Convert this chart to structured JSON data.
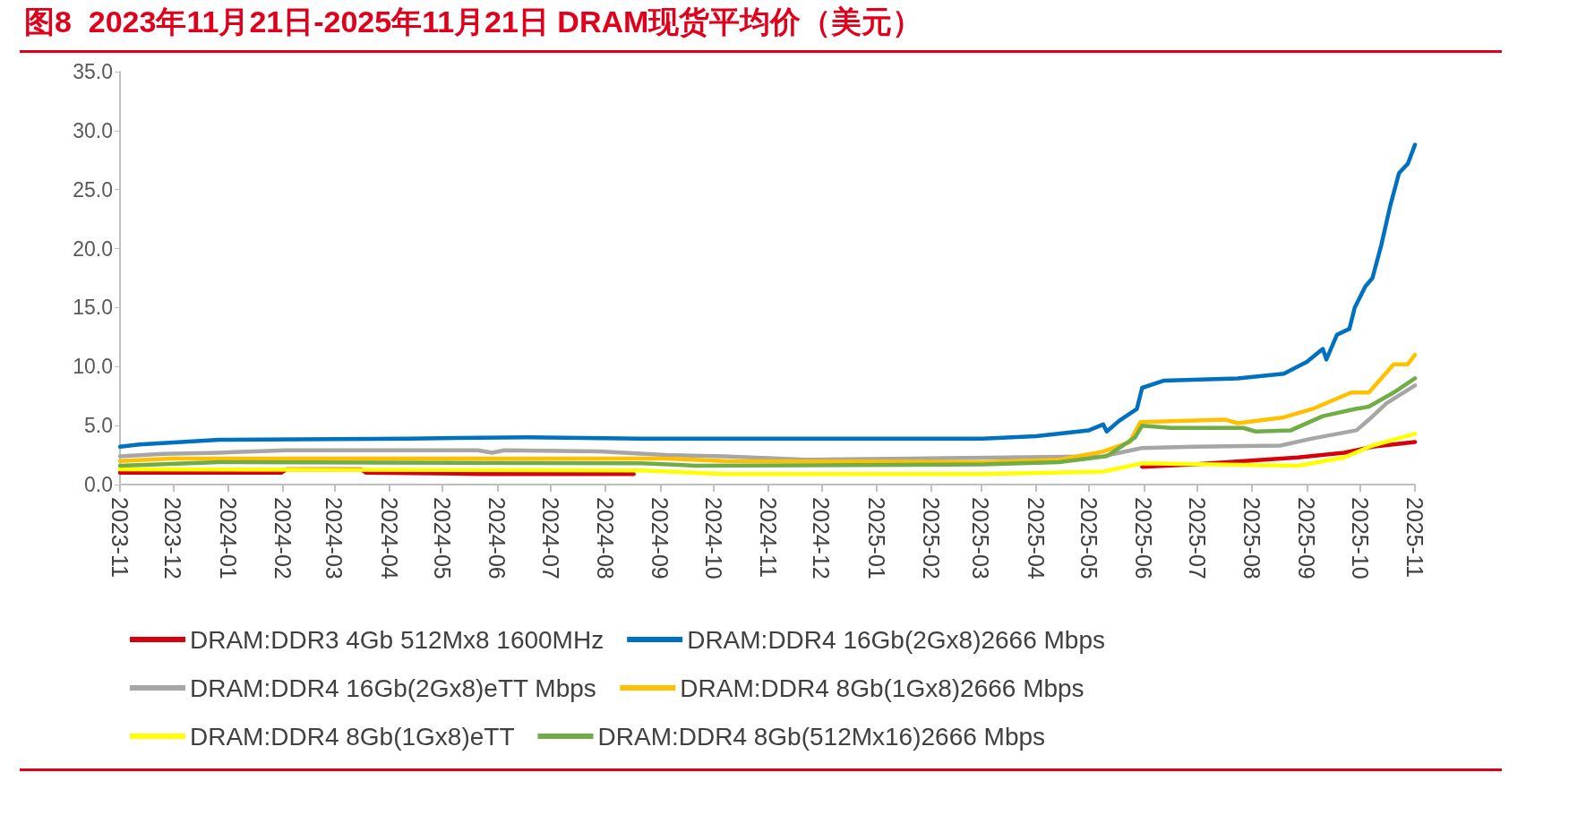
{
  "chart_data": {
    "type": "line",
    "title": "图8  2023年11月21日-2025年11月21日 DRAM现货平均价（美元）",
    "xlim": [
      "2023-11-21",
      "2025-11-21"
    ],
    "xticks": [
      {
        "value": "2023-11-21",
        "label": "2023-11"
      },
      {
        "value": "2023-12-21",
        "label": "2023-12"
      },
      {
        "value": "2024-01-21",
        "label": "2024-01"
      },
      {
        "value": "2024-02-21",
        "label": "2024-02"
      },
      {
        "value": "2024-03-21",
        "label": "2024-03"
      },
      {
        "value": "2024-04-21",
        "label": "2024-04"
      },
      {
        "value": "2024-05-21",
        "label": "2024-05"
      },
      {
        "value": "2024-06-21",
        "label": "2024-06"
      },
      {
        "value": "2024-07-21",
        "label": "2024-07"
      },
      {
        "value": "2024-08-21",
        "label": "2024-08"
      },
      {
        "value": "2024-09-21",
        "label": "2024-09"
      },
      {
        "value": "2024-10-21",
        "label": "2024-10"
      },
      {
        "value": "2024-11-21",
        "label": "2024-11"
      },
      {
        "value": "2024-12-21",
        "label": "2024-12"
      },
      {
        "value": "2025-01-21",
        "label": "2025-01"
      },
      {
        "value": "2025-02-21",
        "label": "2025-02"
      },
      {
        "value": "2025-03-21",
        "label": "2025-03"
      },
      {
        "value": "2025-04-21",
        "label": "2025-04"
      },
      {
        "value": "2025-05-21",
        "label": "2025-05"
      },
      {
        "value": "2025-06-21",
        "label": "2025-06"
      },
      {
        "value": "2025-07-21",
        "label": "2025-07"
      },
      {
        "value": "2025-08-21",
        "label": "2025-08"
      },
      {
        "value": "2025-09-21",
        "label": "2025-09"
      },
      {
        "value": "2025-10-21",
        "label": "2025-10"
      },
      {
        "value": "2025-11-21",
        "label": "2025-11"
      }
    ],
    "ylim": [
      0,
      35
    ],
    "yticks": [
      {
        "value": 0,
        "label": "0.0"
      },
      {
        "value": 5,
        "label": "5.0"
      },
      {
        "value": 10,
        "label": "10.0"
      },
      {
        "value": 15,
        "label": "15.0"
      },
      {
        "value": 20,
        "label": "20.0"
      },
      {
        "value": 25,
        "label": "25.0"
      },
      {
        "value": 30,
        "label": "30.0"
      },
      {
        "value": 35,
        "label": "35.0"
      }
    ],
    "legend": "bottom",
    "marker": "none",
    "line_style": "solid",
    "series": [
      {
        "name": "DRAM:DDR3 4Gb 512Mx8 1600MHz",
        "color": "#d7000f",
        "x": [
          "2023-11-21",
          "2024-02-20",
          "2024-02-23",
          "2024-04-05",
          "2024-04-08",
          "2024-06-12",
          "2024-09-06",
          "2024-10-01",
          "2025-05-10",
          "2025-06-20",
          "2025-07-19",
          "2025-09-16",
          "2025-10-12",
          "2025-10-28",
          "2025-11-21"
        ],
        "values": [
          1.0,
          1.0,
          1.3,
          1.3,
          1.0,
          0.9,
          0.9,
          null,
          null,
          1.5,
          1.7,
          2.3,
          2.7,
          3.2,
          3.6
        ]
      },
      {
        "name": "DRAM:DDR4 16Gb(2Gx8)2666 Mbps",
        "color": "#0070c0",
        "x": [
          "2023-11-21",
          "2023-12-02",
          "2024-01-16",
          "2024-05-02",
          "2024-07-08",
          "2024-09-10",
          "2025-03-08",
          "2025-03-22",
          "2025-04-21",
          "2025-05-21",
          "2025-05-29",
          "2025-05-31",
          "2025-06-07",
          "2025-06-17",
          "2025-06-20",
          "2025-07-02",
          "2025-08-13",
          "2025-09-08",
          "2025-09-21",
          "2025-09-30",
          "2025-10-02",
          "2025-10-08",
          "2025-10-15",
          "2025-10-18",
          "2025-10-24",
          "2025-10-28",
          "2025-11-02",
          "2025-11-07",
          "2025-11-12",
          "2025-11-17",
          "2025-11-21"
        ],
        "values": [
          3.2,
          3.4,
          3.8,
          3.9,
          4.0,
          3.9,
          3.9,
          3.9,
          4.1,
          4.6,
          5.1,
          4.5,
          5.4,
          6.4,
          8.2,
          8.8,
          9.0,
          9.4,
          10.4,
          11.5,
          10.6,
          12.7,
          13.2,
          15.0,
          16.8,
          17.5,
          20.3,
          23.6,
          26.4,
          27.2,
          28.8
        ]
      },
      {
        "name": "DRAM:DDR4 16Gb(2Gx8)eTT Mbps",
        "color": "#a6a6a6",
        "x": [
          "2023-11-21",
          "2023-12-15",
          "2024-01-16",
          "2024-02-23",
          "2024-06-10",
          "2024-06-18",
          "2024-06-25",
          "2024-08-18",
          "2024-09-24",
          "2024-10-27",
          "2024-12-12",
          "2025-05-29",
          "2025-06-20",
          "2025-07-19",
          "2025-09-06",
          "2025-09-24",
          "2025-10-19",
          "2025-10-26",
          "2025-11-05",
          "2025-11-21"
        ],
        "values": [
          2.4,
          2.6,
          2.7,
          2.9,
          2.9,
          2.7,
          2.9,
          2.8,
          2.5,
          2.4,
          2.1,
          2.4,
          3.1,
          3.2,
          3.3,
          3.9,
          4.6,
          5.5,
          6.9,
          8.4
        ]
      },
      {
        "name": "DRAM:DDR4 8Gb(1Gx8)2666 Mbps",
        "color": "#ffc000",
        "x": [
          "2023-11-21",
          "2023-12-20",
          "2024-09-24",
          "2024-10-27",
          "2025-03-22",
          "2025-05-04",
          "2025-05-29",
          "2025-06-13",
          "2025-06-19",
          "2025-08-06",
          "2025-08-13",
          "2025-09-08",
          "2025-09-24",
          "2025-10-16",
          "2025-10-26",
          "2025-11-09",
          "2025-11-17",
          "2025-11-21"
        ],
        "values": [
          2.0,
          2.2,
          2.2,
          2.0,
          1.9,
          2.1,
          2.8,
          3.6,
          5.3,
          5.5,
          5.2,
          5.7,
          6.4,
          7.8,
          7.8,
          10.2,
          10.2,
          11.0
        ]
      },
      {
        "name": "DRAM:DDR4 8Gb(1Gx8)eTT",
        "color": "#ffff00",
        "x": [
          "2023-11-21",
          "2024-09-10",
          "2024-10-27",
          "2025-03-22",
          "2025-05-29",
          "2025-06-20",
          "2025-09-16",
          "2025-10-12",
          "2025-10-28",
          "2025-11-21"
        ],
        "values": [
          1.3,
          1.2,
          0.9,
          0.9,
          1.1,
          1.8,
          1.6,
          2.3,
          3.3,
          4.3
        ]
      },
      {
        "name": "DRAM:DDR4 8Gb(512Mx16)2666 Mbps",
        "color": "#70ad47",
        "x": [
          "2023-11-21",
          "2024-01-16",
          "2024-09-10",
          "2024-10-11",
          "2025-03-22",
          "2025-05-04",
          "2025-05-31",
          "2025-06-16",
          "2025-06-20",
          "2025-07-06",
          "2025-08-16",
          "2025-08-23",
          "2025-09-12",
          "2025-09-30",
          "2025-10-18",
          "2025-10-26",
          "2025-11-09",
          "2025-11-21"
        ],
        "values": [
          1.6,
          1.9,
          1.8,
          1.6,
          1.7,
          1.9,
          2.4,
          4.0,
          5.0,
          4.8,
          4.8,
          4.5,
          4.6,
          5.8,
          6.4,
          6.6,
          7.8,
          9.0
        ]
      }
    ]
  }
}
